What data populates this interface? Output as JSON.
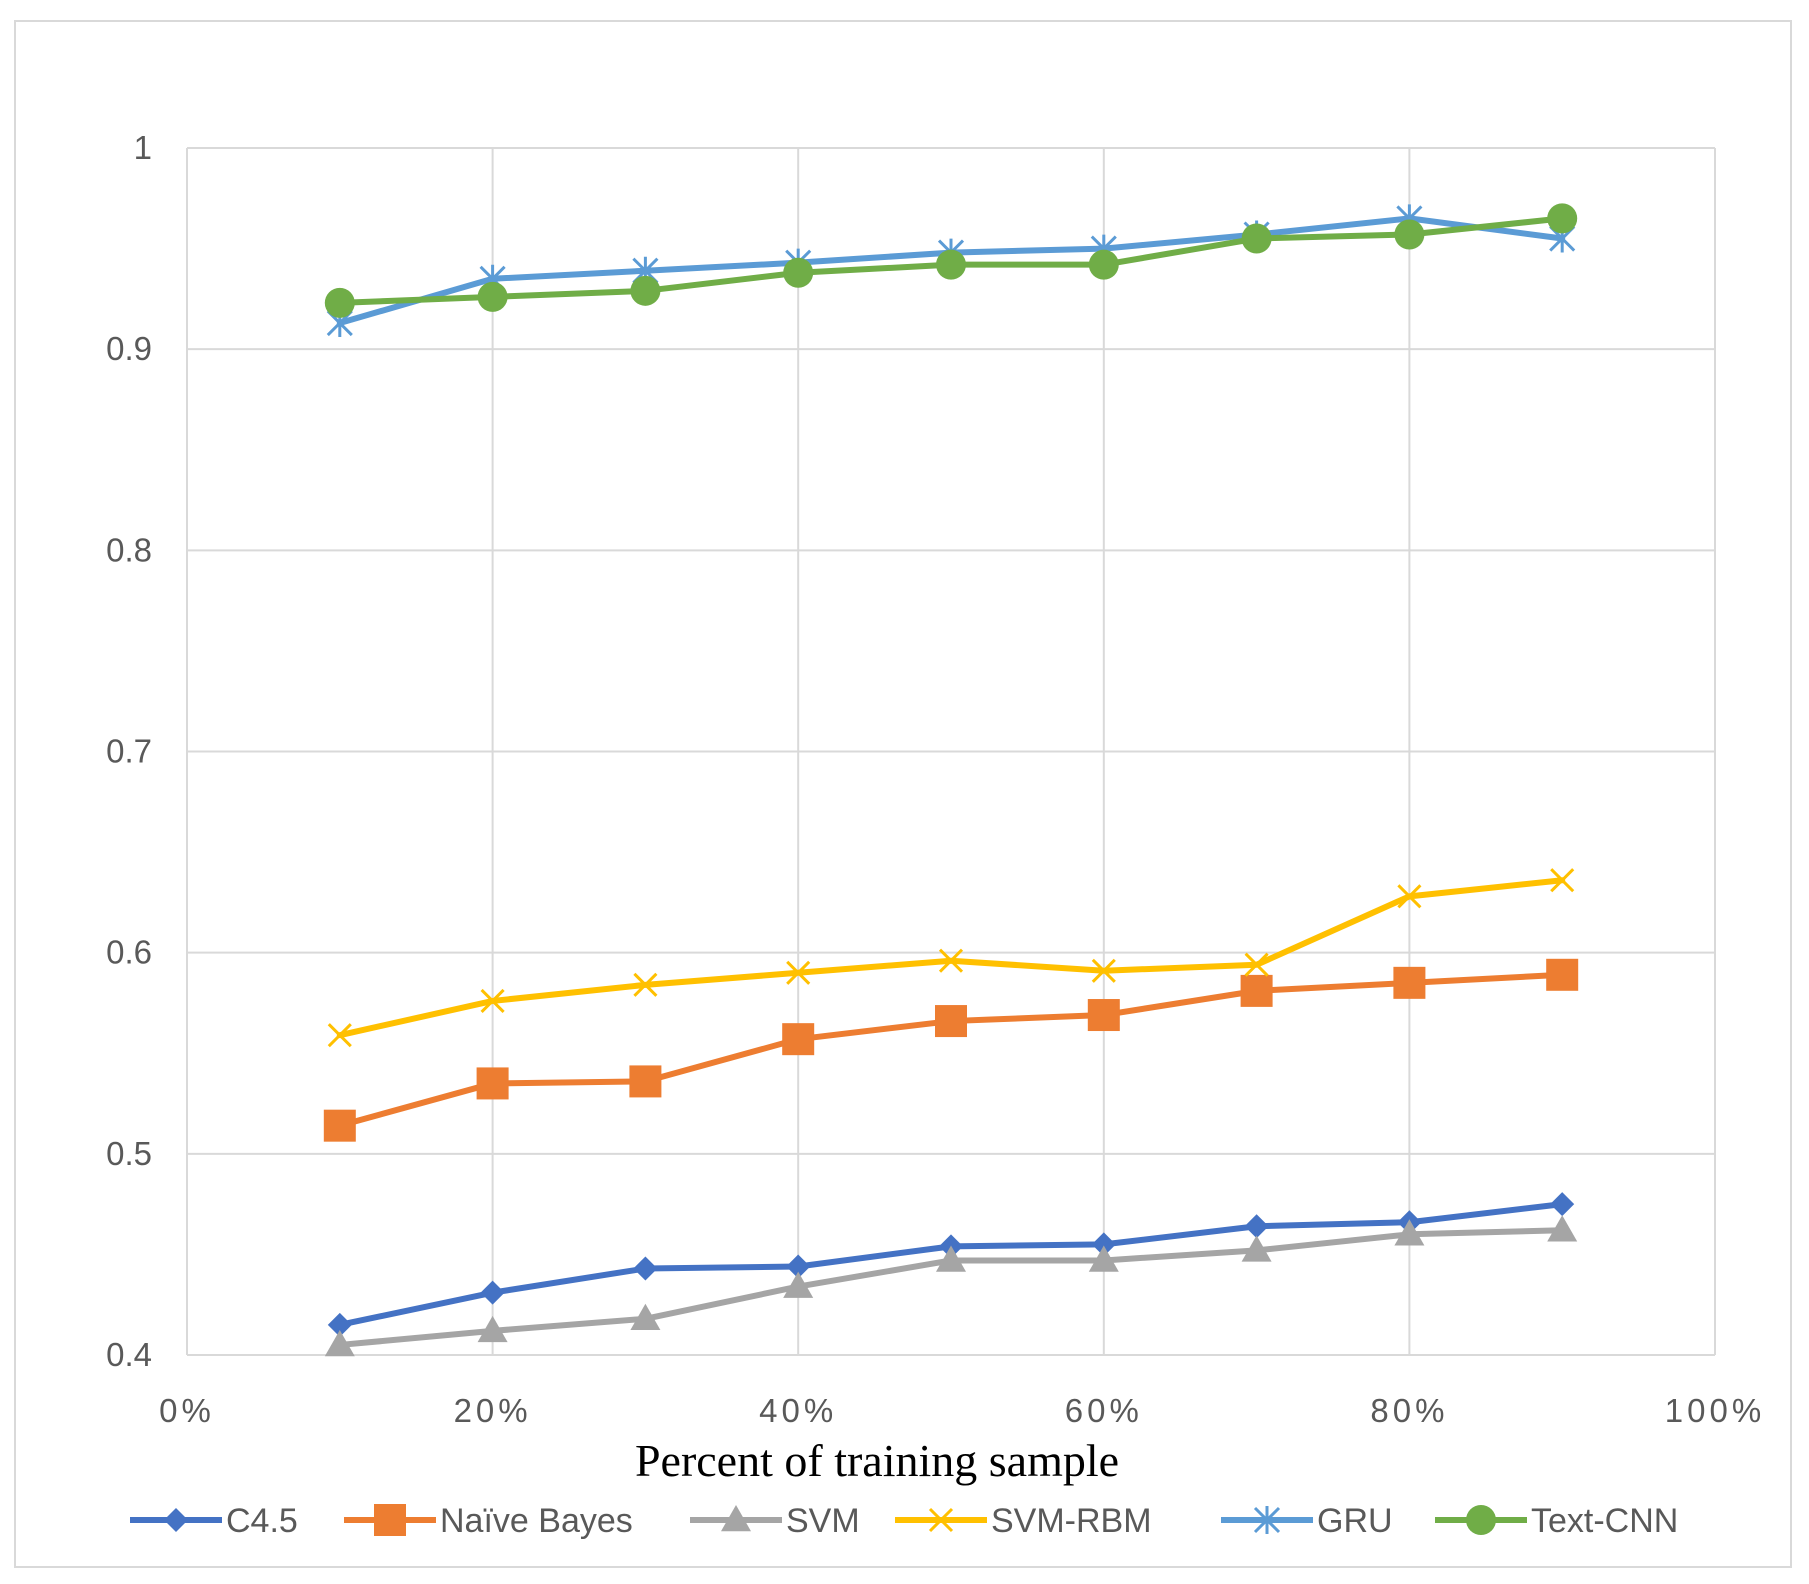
{
  "chart_data": {
    "type": "line",
    "title": "",
    "xlabel": "Percent of training sample",
    "ylabel": "",
    "xlim": [
      0,
      100
    ],
    "ylim": [
      0.4,
      1.0
    ],
    "grid": true,
    "legend_position": "bottom",
    "x": [
      10,
      20,
      30,
      40,
      50,
      60,
      70,
      80,
      90
    ],
    "x_ticks": [
      0,
      20,
      40,
      60,
      80,
      100
    ],
    "x_tick_labels": [
      "0%",
      "20%",
      "40%",
      "60%",
      "80%",
      "100%"
    ],
    "y_ticks": [
      0.4,
      0.5,
      0.6,
      0.7,
      0.8,
      0.9,
      1.0
    ],
    "y_tick_labels": [
      "0.4",
      "0.5",
      "0.6",
      "0.7",
      "0.8",
      "0.9",
      "1"
    ],
    "series": [
      {
        "name": "C4.5",
        "color": "#4472c4",
        "marker": "diamond",
        "values": [
          0.415,
          0.431,
          0.443,
          0.444,
          0.454,
          0.455,
          0.464,
          0.466,
          0.475
        ]
      },
      {
        "name": "Naïve Bayes",
        "color": "#ed7d31",
        "marker": "square",
        "values": [
          0.514,
          0.535,
          0.536,
          0.557,
          0.566,
          0.569,
          0.581,
          0.585,
          0.589
        ]
      },
      {
        "name": "SVM",
        "color": "#a5a5a5",
        "marker": "triangle",
        "values": [
          0.405,
          0.412,
          0.418,
          0.434,
          0.447,
          0.447,
          0.452,
          0.46,
          0.462
        ]
      },
      {
        "name": "SVM-RBM",
        "color": "#ffc000",
        "marker": "x",
        "values": [
          0.559,
          0.576,
          0.584,
          0.59,
          0.596,
          0.591,
          0.594,
          0.628,
          0.636
        ]
      },
      {
        "name": "GRU",
        "color": "#5b9bd5",
        "marker": "asterisk",
        "values": [
          0.913,
          0.935,
          0.939,
          0.943,
          0.948,
          0.95,
          0.957,
          0.965,
          0.955
        ]
      },
      {
        "name": "Text-CNN",
        "color": "#70ad47",
        "marker": "circle",
        "values": [
          0.923,
          0.926,
          0.929,
          0.938,
          0.942,
          0.942,
          0.955,
          0.957,
          0.965
        ]
      }
    ]
  }
}
